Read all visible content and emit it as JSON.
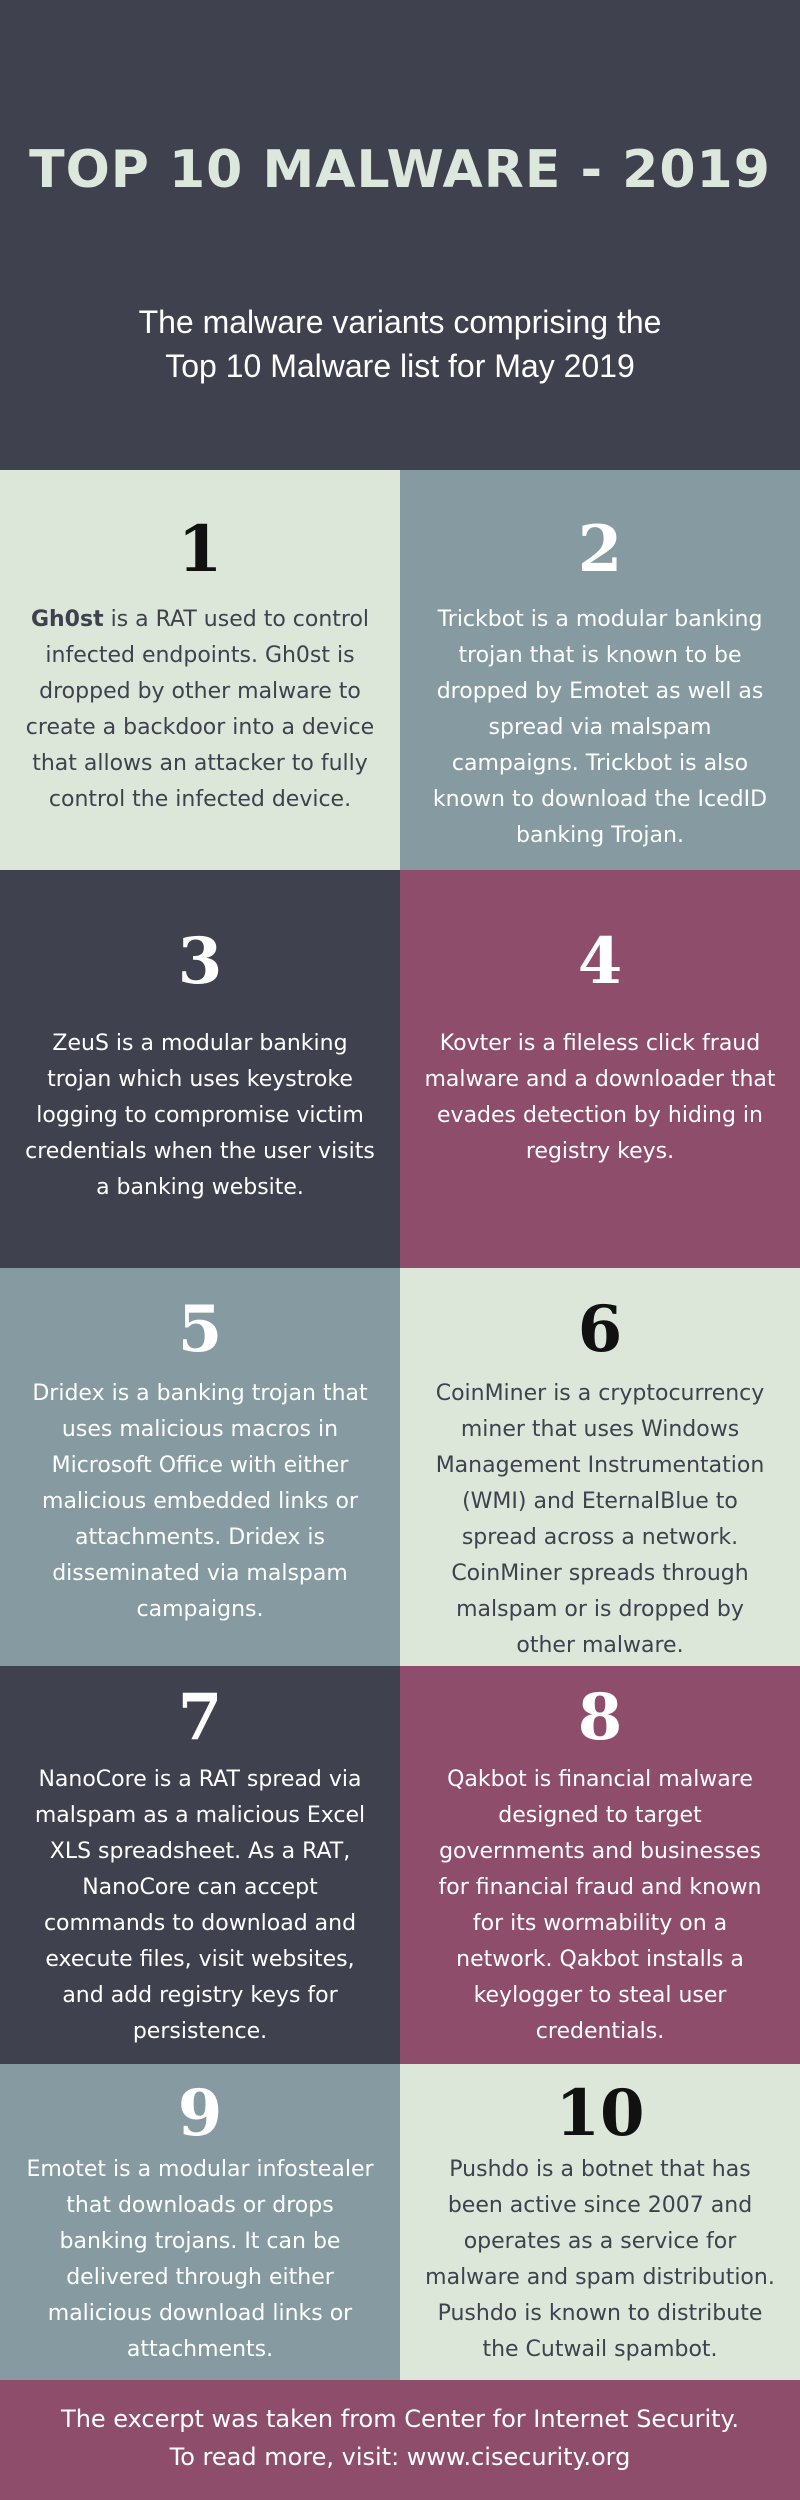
{
  "header": {
    "title": "TOP 10 MALWARE - 2019",
    "subtitle_line1": "The malware variants comprising the",
    "subtitle_line2": "Top 10 Malware list for May 2019"
  },
  "colors": {
    "dark": "#3f414f",
    "light": "#dce7da",
    "steel": "#869ba1",
    "plum": "#8e4e6b"
  },
  "items": [
    {
      "number": "1",
      "name": "Gh0st",
      "text": " is a RAT used to control infected endpoints. Gh0st is dropped by other malware to create a backdoor into a device that allows an attacker to fully control the infected device."
    },
    {
      "number": "2",
      "text": "Trickbot is a modular banking trojan that is known to be dropped by Emotet as well as spread via malspam campaigns. Trickbot is also known to download the IcedID banking Trojan."
    },
    {
      "number": "3",
      "text": "ZeuS is a modular banking trojan which uses keystroke logging to compromise victim credentials when the user visits a banking website."
    },
    {
      "number": "4",
      "text": "Kovter is a fileless click fraud malware and a downloader that evades detection by hiding in registry keys."
    },
    {
      "number": "5",
      "text": "Dridex is a banking trojan that uses malicious macros in Microsoft Office with either malicious embedded links or attachments. Dridex is disseminated via malspam campaigns."
    },
    {
      "number": "6",
      "text": "CoinMiner is a cryptocurrency miner that uses Windows Management Instrumentation (WMI) and EternalBlue to spread across a network. CoinMiner spreads through malspam or is dropped by other malware."
    },
    {
      "number": "7",
      "text": "NanoCore is a RAT spread via malspam as a malicious Excel XLS spreadsheet. As a RAT, NanoCore can accept commands to download and execute files, visit websites, and add registry keys for persistence."
    },
    {
      "number": "8",
      "text": "Qakbot is financial malware designed to target governments and businesses for financial fraud and known for its wormability on a network. Qakbot installs a keylogger to steal user credentials."
    },
    {
      "number": "9",
      "text": "Emotet is a modular infostealer that downloads or drops banking trojans. It can be delivered through either malicious download links or attachments."
    },
    {
      "number": "10",
      "text": "Pushdo is a botnet that has been active since 2007 and operates as a service for malware and spam distribution. Pushdo is known to distribute the Cutwail spambot."
    }
  ],
  "footer": {
    "line1": "The excerpt was taken from Center for Internet Security.",
    "line2": "To read more, visit: www.cisecurity.org"
  }
}
